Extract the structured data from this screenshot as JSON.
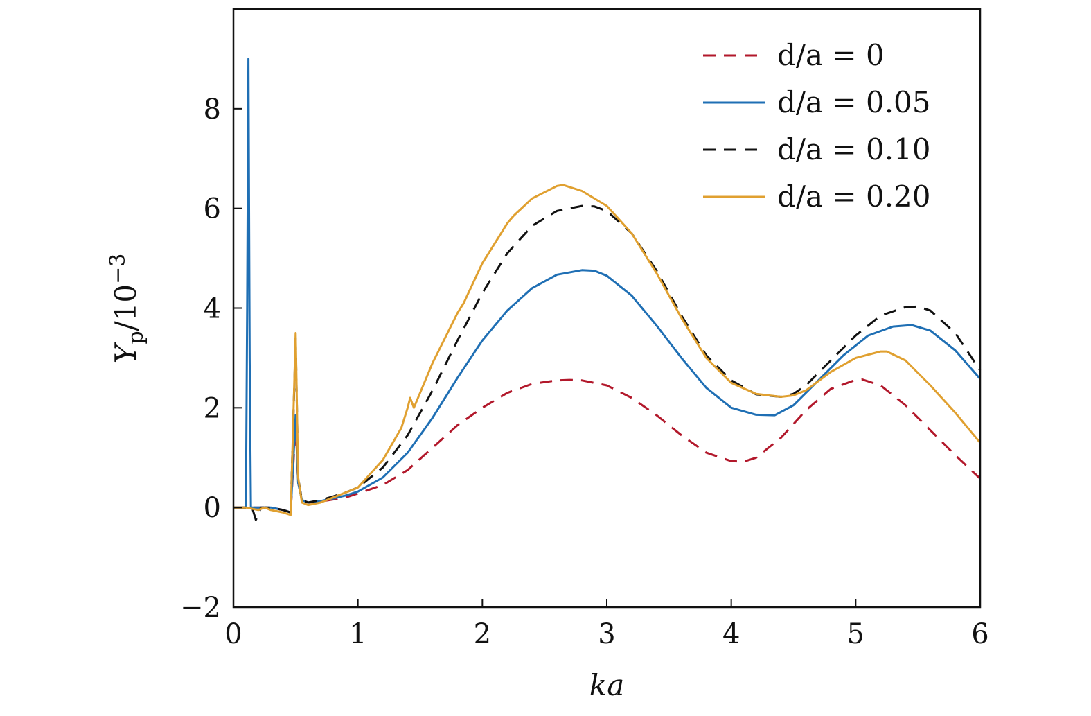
{
  "chart_data": {
    "type": "line",
    "title": "",
    "xlabel": "ka",
    "ylabel_main": "Y",
    "ylabel_sub": "p",
    "ylabel_suffix": "/10",
    "ylabel_exp": "−3",
    "xlim": [
      0,
      6
    ],
    "ylim": [
      -2,
      10
    ],
    "xticks": [
      0,
      1,
      2,
      3,
      4,
      5,
      6
    ],
    "yticks": [
      -2,
      0,
      2,
      4,
      6,
      8
    ],
    "xtick_labels": [
      "0",
      "1",
      "2",
      "3",
      "4",
      "5",
      "6"
    ],
    "ytick_labels": [
      "−2",
      "0",
      "2",
      "4",
      "6",
      "8"
    ],
    "grid": false,
    "legend_position": "top-right",
    "series": [
      {
        "name": "d/a = 0",
        "label_text": "d/a = 0",
        "color": "#b2182b",
        "dash": true,
        "x": [
          0.0,
          0.1,
          0.2,
          0.3,
          0.4,
          0.46,
          0.5,
          0.52,
          0.55,
          0.6,
          0.7,
          0.8,
          0.9,
          1.0,
          1.2,
          1.4,
          1.6,
          1.8,
          2.0,
          2.2,
          2.4,
          2.6,
          2.7,
          2.8,
          3.0,
          3.2,
          3.4,
          3.6,
          3.8,
          4.0,
          4.1,
          4.2,
          4.4,
          4.6,
          4.8,
          5.0,
          5.05,
          5.2,
          5.4,
          5.6,
          5.8,
          6.0
        ],
        "y": [
          0.0,
          0.0,
          0.0,
          0.0,
          -0.05,
          -0.1,
          1.7,
          0.5,
          0.15,
          0.1,
          0.12,
          0.16,
          0.2,
          0.28,
          0.45,
          0.75,
          1.2,
          1.65,
          2.0,
          2.3,
          2.48,
          2.55,
          2.56,
          2.55,
          2.45,
          2.2,
          1.85,
          1.45,
          1.1,
          0.93,
          0.92,
          1.0,
          1.4,
          1.95,
          2.38,
          2.56,
          2.57,
          2.45,
          2.05,
          1.55,
          1.05,
          0.58
        ]
      },
      {
        "name": "d/a = 0.05",
        "label_text": "d/a = 0.05",
        "color": "#1f6fb4",
        "dash": false,
        "x": [
          0.0,
          0.1,
          0.11,
          0.12,
          0.13,
          0.14,
          0.2,
          0.3,
          0.4,
          0.46,
          0.5,
          0.52,
          0.55,
          0.6,
          0.7,
          0.8,
          0.9,
          1.0,
          1.2,
          1.4,
          1.6,
          1.8,
          2.0,
          2.2,
          2.4,
          2.6,
          2.8,
          2.9,
          3.0,
          3.2,
          3.4,
          3.6,
          3.8,
          4.0,
          4.2,
          4.35,
          4.5,
          4.7,
          4.9,
          5.1,
          5.3,
          5.45,
          5.6,
          5.8,
          6.0
        ],
        "y": [
          0.0,
          0.0,
          4.0,
          9.0,
          3.0,
          0.0,
          0.0,
          0.0,
          -0.05,
          -0.1,
          1.85,
          0.5,
          0.15,
          0.1,
          0.13,
          0.18,
          0.24,
          0.32,
          0.6,
          1.1,
          1.8,
          2.6,
          3.35,
          3.95,
          4.4,
          4.67,
          4.76,
          4.75,
          4.65,
          4.25,
          3.65,
          3.0,
          2.4,
          2.0,
          1.86,
          1.85,
          2.05,
          2.55,
          3.05,
          3.45,
          3.63,
          3.66,
          3.55,
          3.15,
          2.58
        ]
      },
      {
        "name": "d/a = 0.10",
        "label_text": "d/a = 0.10",
        "color": "#111111",
        "dash": true,
        "x": [
          0.0,
          0.1,
          0.15,
          0.18,
          0.2,
          0.22,
          0.3,
          0.4,
          0.46,
          0.5,
          0.52,
          0.55,
          0.6,
          0.7,
          0.8,
          0.9,
          1.0,
          1.2,
          1.4,
          1.6,
          1.8,
          2.0,
          2.2,
          2.4,
          2.6,
          2.8,
          2.9,
          3.0,
          3.2,
          3.4,
          3.6,
          3.8,
          4.0,
          4.2,
          4.4,
          4.5,
          4.6,
          4.8,
          5.0,
          5.2,
          5.4,
          5.5,
          5.6,
          5.8,
          6.0
        ],
        "y": [
          0.0,
          0.0,
          0.0,
          -0.25,
          -0.15,
          0.0,
          0.0,
          -0.05,
          -0.1,
          3.4,
          0.6,
          0.15,
          0.1,
          0.15,
          0.22,
          0.3,
          0.4,
          0.8,
          1.45,
          2.35,
          3.35,
          4.3,
          5.1,
          5.65,
          5.95,
          6.05,
          6.04,
          5.95,
          5.5,
          4.75,
          3.85,
          3.05,
          2.55,
          2.27,
          2.22,
          2.28,
          2.45,
          2.95,
          3.45,
          3.85,
          4.02,
          4.03,
          3.95,
          3.5,
          2.75
        ]
      },
      {
        "name": "d/a = 0.20",
        "label_text": "d/a = 0.20",
        "color": "#e0a030",
        "dash": false,
        "x": [
          0.0,
          0.1,
          0.2,
          0.25,
          0.3,
          0.4,
          0.46,
          0.5,
          0.52,
          0.55,
          0.6,
          0.7,
          0.8,
          0.9,
          1.0,
          1.2,
          1.35,
          1.4,
          1.42,
          1.45,
          1.6,
          1.8,
          1.85,
          2.0,
          2.2,
          2.25,
          2.4,
          2.6,
          2.65,
          2.8,
          3.0,
          3.2,
          3.4,
          3.6,
          3.8,
          4.0,
          4.2,
          4.4,
          4.5,
          4.6,
          4.8,
          5.0,
          5.2,
          5.25,
          5.4,
          5.6,
          5.8,
          6.0
        ],
        "y": [
          0.0,
          0.0,
          -0.05,
          0.0,
          -0.05,
          -0.1,
          -0.15,
          3.5,
          0.6,
          0.1,
          0.05,
          0.1,
          0.2,
          0.3,
          0.4,
          0.95,
          1.6,
          2.0,
          2.2,
          2.0,
          2.9,
          3.9,
          4.1,
          4.9,
          5.7,
          5.85,
          6.2,
          6.45,
          6.47,
          6.35,
          6.05,
          5.5,
          4.7,
          3.8,
          3.0,
          2.5,
          2.28,
          2.22,
          2.25,
          2.35,
          2.72,
          3.0,
          3.13,
          3.13,
          2.95,
          2.45,
          1.9,
          1.3
        ]
      }
    ]
  }
}
